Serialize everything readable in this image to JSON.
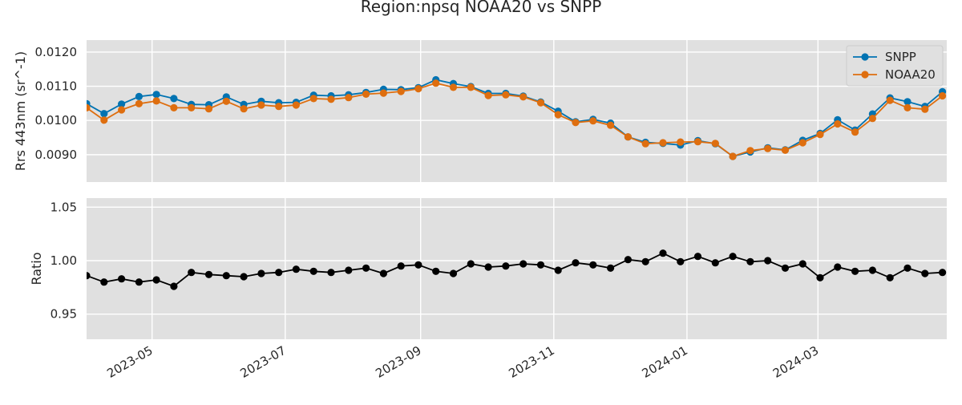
{
  "chart_data": {
    "title": "Region:npsq NOAA20 vs SNPP",
    "x_tick_labels": [
      "2023-05",
      "2023-07",
      "2023-09",
      "2023-11",
      "2024-01",
      "2024-03"
    ],
    "x_ticks": [
      "2023-05-01",
      "2023-07-01",
      "2023-09-01",
      "2023-11-01",
      "2024-01-01",
      "2024-03-01"
    ],
    "xlim": [
      "2023-04-01",
      "2024-04-29"
    ],
    "grid": true,
    "dates": [
      "2023-04-01",
      "2023-04-09",
      "2023-04-17",
      "2023-04-25",
      "2023-05-03",
      "2023-05-11",
      "2023-05-19",
      "2023-05-27",
      "2023-06-04",
      "2023-06-12",
      "2023-06-20",
      "2023-06-28",
      "2023-07-06",
      "2023-07-14",
      "2023-07-22",
      "2023-07-30",
      "2023-08-07",
      "2023-08-15",
      "2023-08-23",
      "2023-08-31",
      "2023-09-08",
      "2023-09-16",
      "2023-09-24",
      "2023-10-02",
      "2023-10-10",
      "2023-10-18",
      "2023-10-26",
      "2023-11-03",
      "2023-11-11",
      "2023-11-19",
      "2023-11-27",
      "2023-12-05",
      "2023-12-13",
      "2023-12-21",
      "2023-12-29",
      "2024-01-06",
      "2024-01-14",
      "2024-01-22",
      "2024-01-30",
      "2024-02-07",
      "2024-02-15",
      "2024-02-23",
      "2024-03-02",
      "2024-03-10",
      "2024-03-18",
      "2024-03-26",
      "2024-04-03",
      "2024-04-11",
      "2024-04-19",
      "2024-04-27"
    ],
    "panels": [
      {
        "type": "line",
        "ylabel": "Rrs 443nm (sr^-1)",
        "ylim": [
          0.0082,
          0.01235
        ],
        "y_ticks": [
          0.009,
          0.01,
          0.011,
          0.012
        ],
        "y_tick_labels": [
          "0.0090",
          "0.0100",
          "0.0110",
          "0.0120"
        ],
        "legend_position": "top-right",
        "series": [
          {
            "name": "SNPP",
            "color": "#0173b2",
            "values": [
              0.01049,
              0.0102,
              0.01048,
              0.0107,
              0.01076,
              0.01064,
              0.01047,
              0.01046,
              0.01069,
              0.01047,
              0.01056,
              0.01052,
              0.01053,
              0.01074,
              0.01072,
              0.01075,
              0.01082,
              0.01091,
              0.0109,
              0.01096,
              0.01119,
              0.01108,
              0.01099,
              0.01079,
              0.01079,
              0.01071,
              0.01054,
              0.01027,
              0.00996,
              0.01003,
              0.00992,
              0.00952,
              0.00936,
              0.00933,
              0.00928,
              0.00941,
              0.00932,
              0.00895,
              0.00908,
              0.0092,
              0.00914,
              0.00942,
              0.00962,
              0.01002,
              0.00972,
              0.01019,
              0.01066,
              0.01055,
              0.01041,
              0.01084
            ]
          },
          {
            "name": "NOAA20",
            "color": "#de6e0f",
            "values": [
              0.01037,
              0.01001,
              0.01031,
              0.01049,
              0.01057,
              0.01037,
              0.01037,
              0.01034,
              0.01056,
              0.01034,
              0.01045,
              0.01041,
              0.01045,
              0.01064,
              0.01062,
              0.01067,
              0.01077,
              0.0108,
              0.01085,
              0.01093,
              0.01109,
              0.01097,
              0.01097,
              0.01073,
              0.01075,
              0.01069,
              0.01052,
              0.01017,
              0.00994,
              0.00999,
              0.00986,
              0.00952,
              0.00932,
              0.00935,
              0.00937,
              0.00938,
              0.00933,
              0.00895,
              0.00912,
              0.00918,
              0.00913,
              0.00935,
              0.00959,
              0.0099,
              0.00966,
              0.01006,
              0.01059,
              0.01037,
              0.01033,
              0.01072
            ]
          }
        ]
      },
      {
        "type": "line",
        "ylabel": "Ratio",
        "ylim": [
          0.9265,
          1.0585
        ],
        "y_ticks": [
          0.95,
          1.0,
          1.05
        ],
        "y_tick_labels": [
          "0.95",
          "1.00",
          "1.05"
        ],
        "series": [
          {
            "color": "#000000",
            "values": [
              0.986,
              0.98,
              0.983,
              0.98,
              0.982,
              0.976,
              0.989,
              0.987,
              0.986,
              0.985,
              0.988,
              0.989,
              0.992,
              0.99,
              0.989,
              0.991,
              0.993,
              0.988,
              0.995,
              0.996,
              0.99,
              0.988,
              0.997,
              0.994,
              0.995,
              0.997,
              0.996,
              0.991,
              0.998,
              0.996,
              0.993,
              1.001,
              0.999,
              1.007,
              0.999,
              1.004,
              0.998,
              1.004,
              0.999,
              1.0,
              0.993,
              0.997,
              0.984,
              0.994,
              0.99,
              0.991,
              0.984,
              0.993,
              0.988,
              0.989
            ]
          }
        ]
      }
    ]
  }
}
